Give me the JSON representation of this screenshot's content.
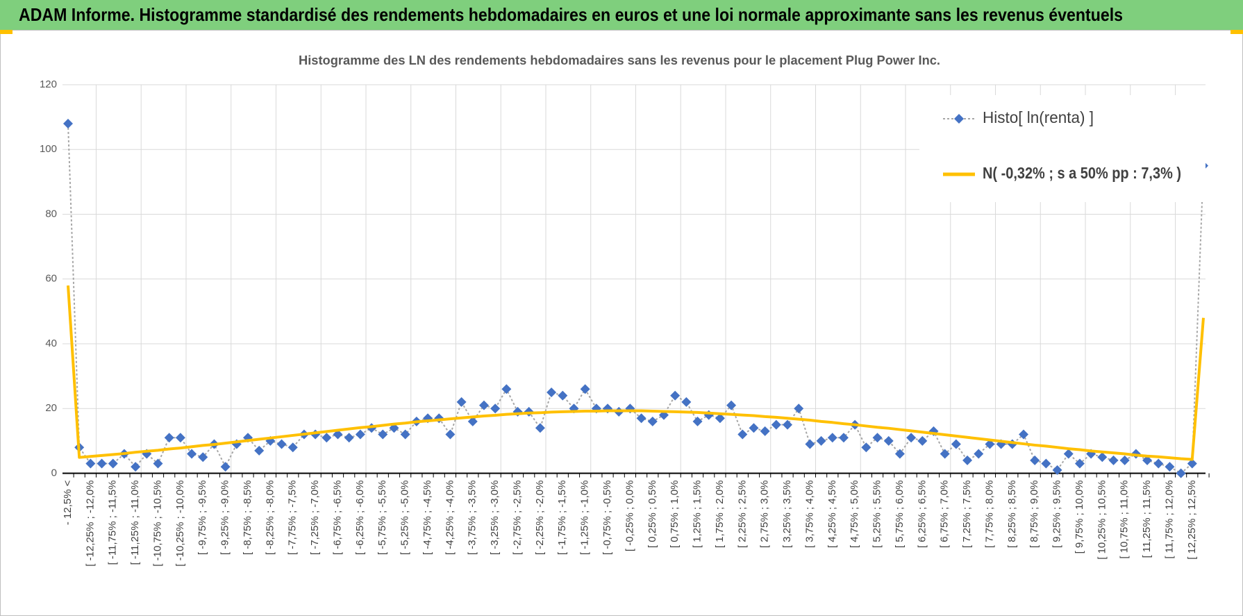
{
  "header": {
    "title": "ADAM Informe. Histogramme standardisé des rendements hebdomadaires en euros et une loi normale approximante sans les revenus éventuels"
  },
  "chart_data": {
    "type": "line",
    "title": "Histogramme des LN des rendements hebdomadaires sans les revenus pour le placement Plug Power Inc.",
    "categories": [
      "- 12,5% <",
      null,
      "[ -12,25% ; -12,0%",
      null,
      "[ -11,75% ; -11,5%",
      null,
      "[ -11,25% ; -11,0%",
      null,
      "[ -10,75% ; -10,5%",
      null,
      "[ -10,25% ; -10,0%",
      null,
      "[ -9,75% ; -9,5%",
      null,
      "[ -9,25% ; -9,0%",
      null,
      "[ -8,75% ; -8,5%",
      null,
      "[ -8,25% ; -8,0%",
      null,
      "[ -7,75% ; -7,5%",
      null,
      "[ -7,25% ; -7,0%",
      null,
      "[ -6,75% ; -6,5%",
      null,
      "[ -6,25% ; -6,0%",
      null,
      "[ -5,75% ; -5,5%",
      null,
      "[ -5,25% ; -5,0%",
      null,
      "[ -4,75% ; -4,5%",
      null,
      "[ -4,25% ; -4,0%",
      null,
      "[ -3,75% ; -3,5%",
      null,
      "[ -3,25% ; -3,0%",
      null,
      "[ -2,75% ; -2,5%",
      null,
      "[ -2,25% ; -2,0%",
      null,
      "[ -1,75% ; -1,5%",
      null,
      "[ -1,25% ; -1,0%",
      null,
      "[ -0,75% ; -0,5%",
      null,
      "[ -0,25% ; 0,0%",
      null,
      "[ 0,25% ; 0,5%",
      null,
      "[ 0,75% ; 1,0%",
      null,
      "[ 1,25% ; 1,5%",
      null,
      "[ 1,75% ; 2,0%",
      null,
      "[ 2,25% ; 2,5%",
      null,
      "[ 2,75% ; 3,0%",
      null,
      "[ 3,25% ; 3,5%",
      null,
      "[ 3,75% ; 4,0%",
      null,
      "[ 4,25% ; 4,5%",
      null,
      "[ 4,75% ; 5,0%",
      null,
      "[ 5,25% ; 5,5%",
      null,
      "[ 5,75% ; 6,0%",
      null,
      "[ 6,25% ; 6,5%",
      null,
      "[ 6,75% ; 7,0%",
      null,
      "[ 7,25% ; 7,5%",
      null,
      "[ 7,75% ; 8,0%",
      null,
      "[ 8,25% ; 8,5%",
      null,
      "[ 8,75% ; 9,0%",
      null,
      "[ 9,25% ; 9,5%",
      null,
      "[ 9,75% ; 10,0%",
      null,
      "[ 10,25% ; 10,5%",
      null,
      "[ 10,75% ; 11,0%",
      null,
      "[ 11,25% ; 11,5%",
      null,
      "[ 11,75% ; 12,0%",
      null,
      "[ 12,25% ; 12,5%",
      null
    ],
    "series": [
      {
        "name": "Histo[ ln(renta) ]",
        "color": "#4472c4",
        "marker": "diamond",
        "line_color": "#a6a6a6",
        "line_style": "dotted",
        "values": [
          108,
          8,
          3,
          3,
          3,
          6,
          2,
          6,
          3,
          11,
          11,
          6,
          5,
          9,
          2,
          9,
          11,
          7,
          10,
          9,
          8,
          12,
          12,
          11,
          12,
          11,
          12,
          14,
          12,
          14,
          12,
          16,
          17,
          17,
          12,
          22,
          16,
          21,
          20,
          26,
          19,
          19,
          14,
          25,
          24,
          20,
          26,
          20,
          20,
          19,
          20,
          17,
          16,
          18,
          24,
          22,
          16,
          18,
          17,
          21,
          12,
          14,
          13,
          15,
          15,
          20,
          9,
          10,
          11,
          11,
          15,
          8,
          11,
          10,
          6,
          11,
          10,
          13,
          6,
          9,
          4,
          6,
          9,
          9,
          9,
          12,
          4,
          3,
          1,
          6,
          3,
          6,
          5,
          4,
          4,
          6,
          4,
          3,
          2,
          0,
          3,
          95
        ]
      },
      {
        "name": "N( -0,32% ; s a 50% pp : 7,3% )",
        "color": "#ffc000",
        "line_style": "solid",
        "values": [
          58,
          4.9,
          5.2,
          5.5,
          5.8,
          6.1,
          6.5,
          6.8,
          7.1,
          7.5,
          7.8,
          8.2,
          8.6,
          8.9,
          9.3,
          9.7,
          10.1,
          10.5,
          10.9,
          11.3,
          11.7,
          12.1,
          12.5,
          12.9,
          13.3,
          13.7,
          14.1,
          14.4,
          14.8,
          15.2,
          15.5,
          15.9,
          16.2,
          16.5,
          16.8,
          17.1,
          17.4,
          17.7,
          17.9,
          18.2,
          18.4,
          18.6,
          18.7,
          18.9,
          19.0,
          19.1,
          19.2,
          19.2,
          19.3,
          19.3,
          19.3,
          19.3,
          19.2,
          19.1,
          19.0,
          18.9,
          18.8,
          18.6,
          18.4,
          18.2,
          18.0,
          17.8,
          17.5,
          17.3,
          17.0,
          16.7,
          16.4,
          16.0,
          15.7,
          15.3,
          15.0,
          14.6,
          14.2,
          13.9,
          13.5,
          13.1,
          12.7,
          12.3,
          11.9,
          11.5,
          11.1,
          10.7,
          10.3,
          9.9,
          9.5,
          9.1,
          8.7,
          8.4,
          8.0,
          7.6,
          7.3,
          6.9,
          6.6,
          6.3,
          6.0,
          5.6,
          5.3,
          5.1,
          4.8,
          4.5,
          4.3,
          48
        ]
      }
    ],
    "ylim": [
      0,
      120
    ],
    "yticks": [
      0,
      20,
      40,
      60,
      80,
      100,
      120
    ],
    "grid": true,
    "legend": "top-right"
  }
}
